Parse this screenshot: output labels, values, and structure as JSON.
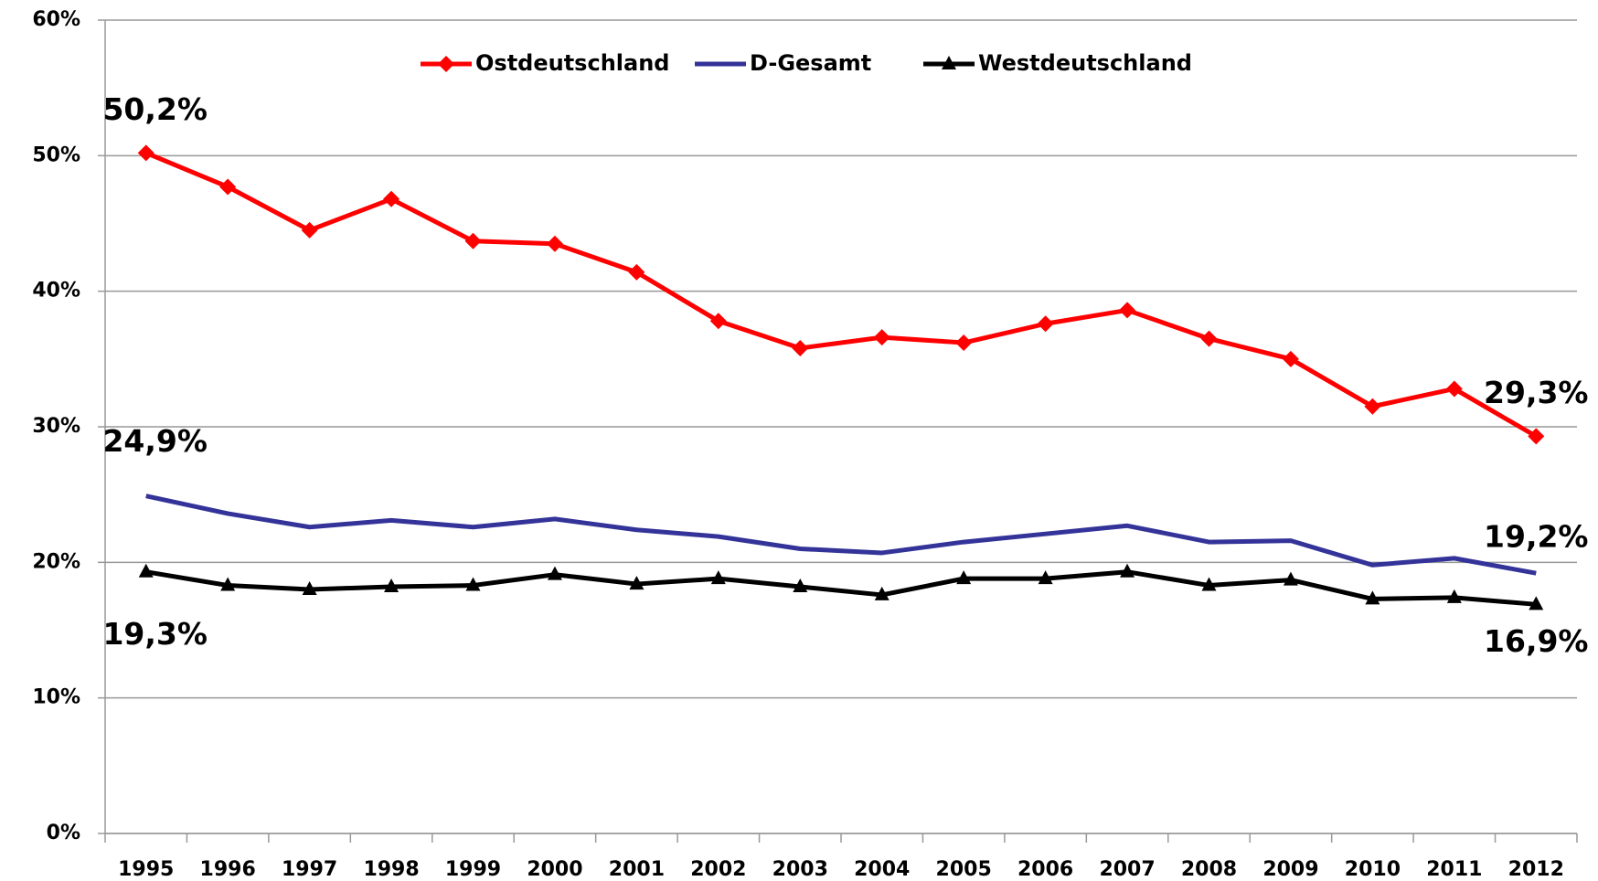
{
  "chart_data": {
    "type": "line",
    "categories": [
      "1995",
      "1996",
      "1997",
      "1998",
      "1999",
      "2000",
      "2001",
      "2002",
      "2003",
      "2004",
      "2005",
      "2006",
      "2007",
      "2008",
      "2009",
      "2010",
      "2011",
      "2012"
    ],
    "series": [
      {
        "name": "Ostdeutschland",
        "color": "#ff0000",
        "marker": "diamond",
        "values": [
          50.2,
          47.7,
          44.5,
          46.8,
          43.7,
          43.5,
          41.4,
          37.8,
          35.8,
          36.6,
          36.2,
          37.6,
          38.6,
          36.5,
          35.0,
          31.5,
          32.8,
          29.3
        ],
        "value_labels": [
          "50,2%",
          null,
          null,
          null,
          null,
          null,
          null,
          null,
          null,
          null,
          null,
          null,
          null,
          null,
          null,
          null,
          null,
          "29,3%"
        ]
      },
      {
        "name": "D-Gesamt",
        "color": "#333399",
        "values": [
          24.9,
          23.6,
          22.6,
          23.1,
          22.6,
          23.2,
          22.4,
          21.9,
          21.0,
          20.7,
          21.5,
          22.1,
          22.7,
          21.5,
          21.6,
          19.8,
          20.3,
          19.2
        ],
        "value_labels": [
          "24,9%",
          null,
          null,
          null,
          null,
          null,
          null,
          null,
          null,
          null,
          null,
          null,
          null,
          null,
          null,
          null,
          null,
          "19,2%"
        ]
      },
      {
        "name": "Westdeutschland",
        "color": "#000000",
        "marker": "triangle",
        "values": [
          19.3,
          18.3,
          18.0,
          18.2,
          18.3,
          19.1,
          18.4,
          18.8,
          18.2,
          17.6,
          18.8,
          18.8,
          19.3,
          18.3,
          18.7,
          17.3,
          17.4,
          16.9
        ],
        "value_labels": [
          "19,3%",
          null,
          null,
          null,
          null,
          null,
          null,
          null,
          null,
          null,
          null,
          null,
          null,
          null,
          null,
          null,
          null,
          "16,9%"
        ]
      }
    ],
    "ylim": [
      0,
      60
    ],
    "yticks": [
      {
        "value": 0,
        "label": "0%"
      },
      {
        "value": 10,
        "label": "10%"
      },
      {
        "value": 20,
        "label": "20%"
      },
      {
        "value": 30,
        "label": "30%"
      },
      {
        "value": 40,
        "label": "40%"
      },
      {
        "value": 50,
        "label": "50%"
      },
      {
        "value": 60,
        "label": "60%"
      }
    ],
    "grid": true,
    "legend": "top"
  }
}
